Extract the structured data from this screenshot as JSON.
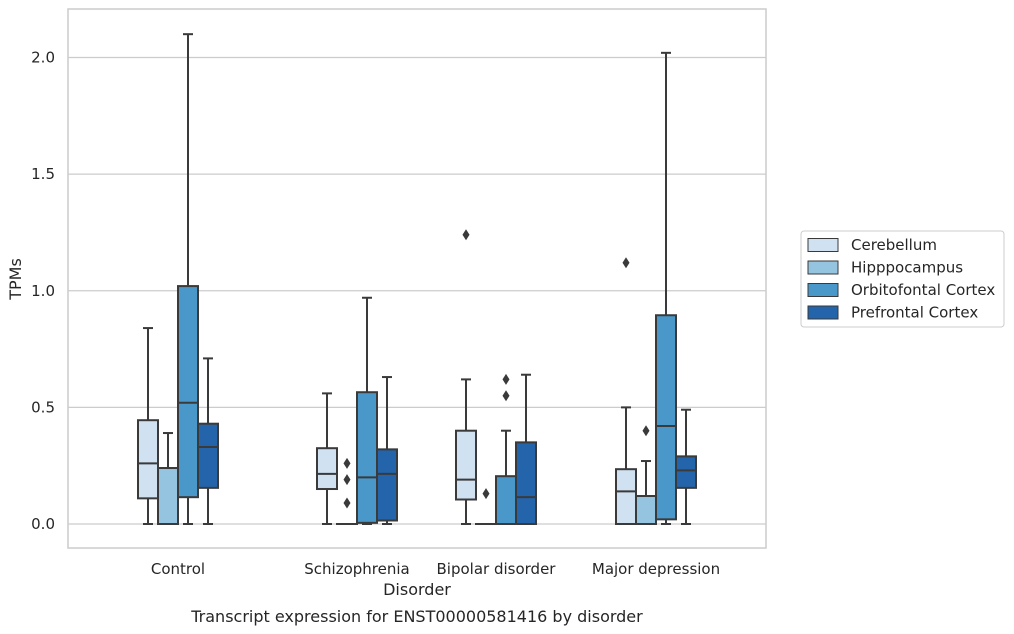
{
  "caption": "Transcript expression for ENST00000581416 by disorder",
  "chart_data": {
    "type": "box",
    "xlabel": "Disorder",
    "ylabel": "TPMs",
    "ylim": [
      -0.1,
      2.2
    ],
    "yticks": [
      "0.0",
      "0.5",
      "1.0",
      "1.5",
      "2.0"
    ],
    "grid": "horizontal",
    "legend_position": "right",
    "categories": [
      "Control",
      "Schizophrenia",
      "Bipolar disorder",
      "Major depression"
    ],
    "series": [
      {
        "name": "Cerebellum",
        "color": "#d0e1f2",
        "boxes": [
          {
            "whisker_low": 0.0,
            "q1": 0.11,
            "median": 0.26,
            "q3": 0.445,
            "whisker_high": 0.84,
            "outliers": []
          },
          {
            "whisker_low": 0.0,
            "q1": 0.15,
            "median": 0.215,
            "q3": 0.325,
            "whisker_high": 0.56,
            "outliers": []
          },
          {
            "whisker_low": 0.0,
            "q1": 0.105,
            "median": 0.19,
            "q3": 0.4,
            "whisker_high": 0.62,
            "outliers": [
              1.24
            ]
          },
          {
            "whisker_low": 0.0,
            "q1": 0.0,
            "median": 0.14,
            "q3": 0.235,
            "whisker_high": 0.5,
            "outliers": [
              1.12
            ]
          }
        ]
      },
      {
        "name": "Hipppocampus",
        "color": "#94c4df",
        "boxes": [
          {
            "whisker_low": 0.0,
            "q1": 0.0,
            "median": 0.0,
            "q3": 0.24,
            "whisker_high": 0.39,
            "outliers": []
          },
          {
            "whisker_low": 0.0,
            "q1": 0.0,
            "median": 0.0,
            "q3": 0.0,
            "whisker_high": 0.0,
            "outliers": [
              0.26,
              0.19,
              0.09
            ]
          },
          {
            "whisker_low": 0.0,
            "q1": 0.0,
            "median": 0.0,
            "q3": 0.0,
            "whisker_high": 0.0,
            "outliers": [
              0.13
            ]
          },
          {
            "whisker_low": 0.0,
            "q1": 0.0,
            "median": 0.0,
            "q3": 0.12,
            "whisker_high": 0.27,
            "outliers": [
              0.4
            ]
          }
        ]
      },
      {
        "name": "Orbitofontal Cortex",
        "color": "#4a98c9",
        "boxes": [
          {
            "whisker_low": 0.0,
            "q1": 0.115,
            "median": 0.52,
            "q3": 1.02,
            "whisker_high": 2.1,
            "outliers": []
          },
          {
            "whisker_low": 0.0,
            "q1": 0.005,
            "median": 0.2,
            "q3": 0.565,
            "whisker_high": 0.97,
            "outliers": []
          },
          {
            "whisker_low": 0.0,
            "q1": 0.0,
            "median": 0.0,
            "q3": 0.205,
            "whisker_high": 0.4,
            "outliers": [
              0.62,
              0.55
            ]
          },
          {
            "whisker_low": 0.0,
            "q1": 0.02,
            "median": 0.42,
            "q3": 0.895,
            "whisker_high": 2.02,
            "outliers": []
          }
        ]
      },
      {
        "name": "Prefrontal Cortex",
        "color": "#2464aa",
        "boxes": [
          {
            "whisker_low": 0.0,
            "q1": 0.155,
            "median": 0.33,
            "q3": 0.43,
            "whisker_high": 0.71,
            "outliers": []
          },
          {
            "whisker_low": 0.0,
            "q1": 0.015,
            "median": 0.215,
            "q3": 0.32,
            "whisker_high": 0.63,
            "outliers": []
          },
          {
            "whisker_low": 0.0,
            "q1": 0.0,
            "median": 0.115,
            "q3": 0.35,
            "whisker_high": 0.64,
            "outliers": []
          },
          {
            "whisker_low": 0.0,
            "q1": 0.155,
            "median": 0.23,
            "q3": 0.29,
            "whisker_high": 0.49,
            "outliers": []
          }
        ]
      }
    ]
  }
}
